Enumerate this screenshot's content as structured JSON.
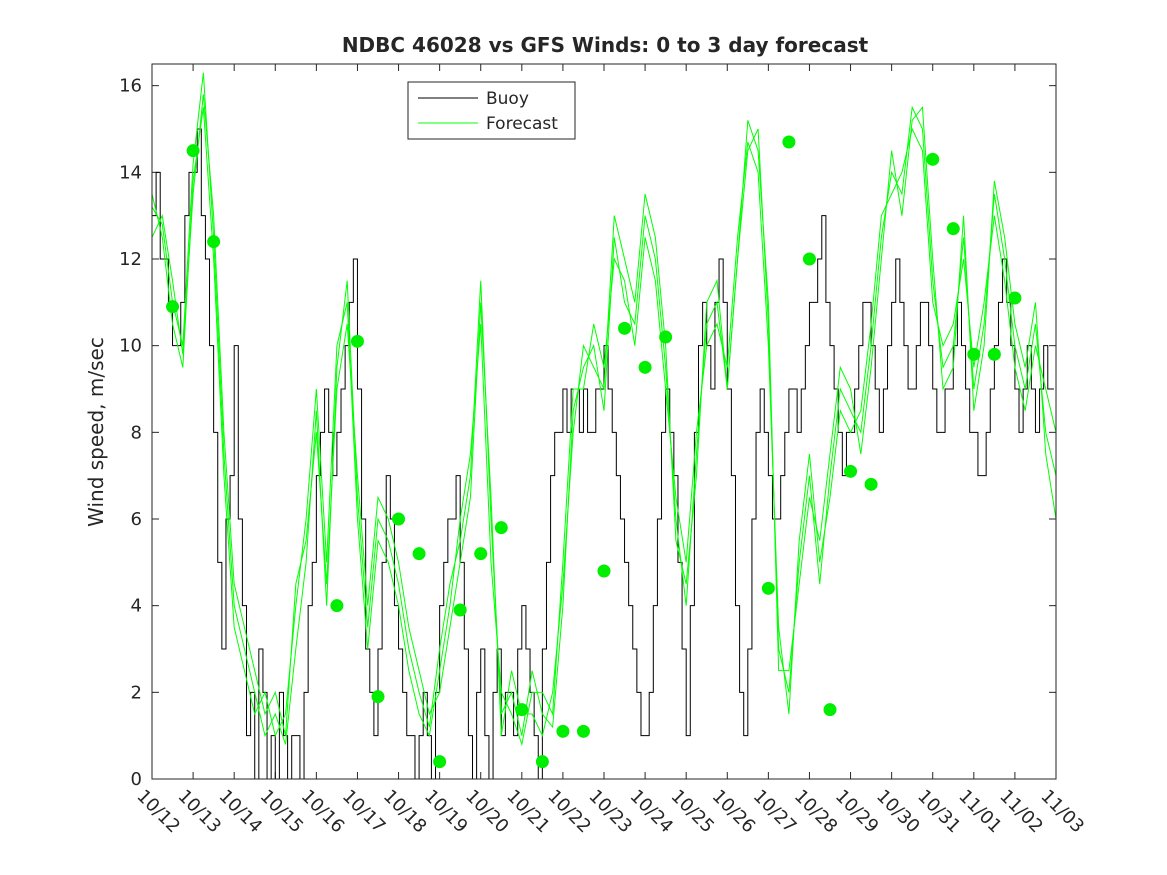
{
  "chart_data": {
    "type": "line",
    "title": "NDBC 46028 vs GFS Winds: 0 to 3 day forecast",
    "xlabel": "",
    "ylabel": "Wind speed, m/sec",
    "xlim": [
      0,
      22
    ],
    "ylim": [
      0,
      16.5
    ],
    "xticks": [
      0,
      1,
      2,
      3,
      4,
      5,
      6,
      7,
      8,
      9,
      10,
      11,
      12,
      13,
      14,
      15,
      16,
      17,
      18,
      19,
      20,
      21,
      22
    ],
    "xtick_labels": [
      "10/12",
      "10/13",
      "10/14",
      "10/15",
      "10/16",
      "10/17",
      "10/18",
      "10/19",
      "10/20",
      "10/21",
      "10/22",
      "10/23",
      "10/24",
      "10/25",
      "10/26",
      "10/27",
      "10/28",
      "10/29",
      "10/30",
      "10/31",
      "11/01",
      "11/02",
      "11/03"
    ],
    "yticks": [
      0,
      2,
      4,
      6,
      8,
      10,
      12,
      14,
      16
    ],
    "ytick_labels": [
      "0",
      "2",
      "4",
      "6",
      "8",
      "10",
      "12",
      "14",
      "16"
    ],
    "legend": {
      "position": "top-center",
      "entries": [
        "Buoy",
        "Forecast"
      ]
    },
    "colors": {
      "buoy": "#000000",
      "forecast": "#00ff00",
      "markers": "#00ee00"
    },
    "series": [
      {
        "name": "Buoy",
        "style": "step",
        "x": [
          0,
          0.1,
          0.2,
          0.3,
          0.4,
          0.5,
          0.6,
          0.7,
          0.8,
          0.9,
          1.0,
          1.1,
          1.2,
          1.3,
          1.4,
          1.5,
          1.6,
          1.7,
          1.8,
          1.9,
          2.0,
          2.1,
          2.2,
          2.3,
          2.4,
          2.5,
          2.6,
          2.7,
          2.8,
          2.9,
          3.0,
          3.1,
          3.2,
          3.3,
          3.4,
          3.5,
          3.6,
          3.7,
          3.8,
          3.9,
          4.0,
          4.1,
          4.2,
          4.3,
          4.4,
          4.5,
          4.6,
          4.7,
          4.8,
          4.9,
          5.0,
          5.1,
          5.2,
          5.3,
          5.4,
          5.5,
          5.6,
          5.7,
          5.8,
          5.9,
          6.0,
          6.1,
          6.2,
          6.3,
          6.4,
          6.5,
          6.6,
          6.7,
          6.8,
          6.9,
          7.0,
          7.1,
          7.2,
          7.3,
          7.4,
          7.5,
          7.6,
          7.7,
          7.8,
          7.9,
          8.0,
          8.1,
          8.2,
          8.3,
          8.4,
          8.5,
          8.6,
          8.7,
          8.8,
          8.9,
          9.0,
          9.1,
          9.2,
          9.3,
          9.4,
          9.5,
          9.6,
          9.7,
          9.8,
          9.9,
          10.0,
          10.1,
          10.2,
          10.3,
          10.4,
          10.5,
          10.6,
          10.7,
          10.8,
          10.9,
          11.0,
          11.1,
          11.2,
          11.3,
          11.4,
          11.5,
          11.6,
          11.7,
          11.8,
          11.9,
          12.0,
          12.1,
          12.2,
          12.3,
          12.4,
          12.5,
          12.6,
          12.7,
          12.8,
          12.9,
          13.0,
          13.1,
          13.2,
          13.3,
          13.4,
          13.5,
          13.6,
          13.7,
          13.8,
          13.9,
          14.0,
          14.1,
          14.2,
          14.3,
          14.4,
          14.5,
          14.6,
          14.7,
          14.8,
          14.9,
          15.0,
          15.1,
          15.2,
          15.3,
          15.4,
          15.5,
          15.6,
          15.7,
          15.8,
          15.9,
          16.0,
          16.1,
          16.2,
          16.3,
          16.4,
          16.5,
          16.6,
          16.7,
          16.8,
          16.9,
          17.0,
          17.1,
          17.2,
          17.3,
          17.4,
          17.5,
          17.6,
          17.7,
          17.8,
          17.9,
          18.0,
          18.1,
          18.2,
          18.3,
          18.4,
          18.5,
          18.6,
          18.7,
          18.8,
          18.9,
          19.0,
          19.1,
          19.2,
          19.3,
          19.4,
          19.5,
          19.6,
          19.7,
          19.8,
          19.9,
          20.0,
          20.1,
          20.2,
          20.3,
          20.4,
          20.5,
          20.6,
          20.7,
          20.8,
          20.9,
          21.0,
          21.1,
          21.2,
          21.3,
          21.4,
          21.5,
          21.6,
          21.7,
          21.8,
          21.9
        ],
        "y": [
          13,
          14,
          12,
          12,
          11,
          10,
          10,
          11,
          13,
          14,
          14,
          15,
          13,
          12,
          10,
          8,
          5,
          3,
          6,
          7,
          10,
          6,
          4,
          1,
          2,
          0,
          3,
          2,
          0,
          1,
          0,
          2,
          1,
          0,
          1,
          1,
          0,
          2,
          4,
          5,
          7,
          8,
          9,
          8,
          7,
          8,
          9,
          10,
          11,
          12,
          9,
          6,
          3,
          2,
          1,
          3,
          5,
          7,
          6,
          4,
          3,
          2,
          1,
          1,
          0,
          1,
          2,
          1,
          0,
          2,
          4,
          5,
          6,
          6,
          7,
          5,
          3,
          1,
          0,
          2,
          3,
          1,
          0,
          2,
          3,
          1,
          2,
          2,
          1,
          3,
          4,
          3,
          2,
          1,
          0,
          3,
          5,
          7,
          8,
          8,
          9,
          8,
          9,
          9,
          8,
          9,
          8,
          8,
          9,
          9,
          10,
          9,
          8,
          7,
          6,
          5,
          4,
          3,
          2,
          1,
          1,
          2,
          4,
          6,
          8,
          9,
          8,
          7,
          5,
          3,
          1,
          4,
          8,
          10,
          11,
          10,
          9,
          11,
          12,
          11,
          9,
          7,
          4,
          2,
          1,
          3,
          6,
          8,
          9,
          8,
          7,
          6,
          6,
          7,
          8,
          9,
          9,
          8,
          9,
          10,
          11,
          11,
          12,
          13,
          11,
          10,
          9,
          8,
          7,
          8,
          8,
          9,
          10,
          11,
          11,
          10,
          9,
          8,
          9,
          10,
          11,
          12,
          11,
          10,
          9,
          9,
          10,
          11,
          11,
          10,
          9,
          8,
          8,
          9,
          9,
          10,
          11,
          10,
          9,
          8,
          8,
          7,
          7,
          8,
          9,
          10,
          11,
          12,
          11,
          10,
          9,
          8,
          9,
          10,
          9,
          8,
          9,
          10,
          9,
          9
        ]
      },
      {
        "name": "Forecast 1",
        "x": [
          0,
          0.25,
          0.5,
          0.75,
          1.0,
          1.25,
          1.5,
          1.75,
          2.0,
          2.25,
          2.5,
          2.75,
          3.0,
          3.25,
          3.5,
          3.75,
          4.0,
          4.25,
          4.5,
          4.75,
          5.0,
          5.25,
          5.5,
          5.75,
          6.0,
          6.25,
          6.5,
          6.75,
          7.0,
          7.25,
          7.5,
          7.75,
          8.0,
          8.25,
          8.5,
          8.75,
          9.0,
          9.25,
          9.5,
          9.75,
          10.0,
          10.25,
          10.5,
          10.75,
          11.0,
          11.25,
          11.5,
          11.75,
          12.0,
          12.25,
          12.5,
          12.75,
          13.0,
          13.25,
          13.5,
          13.75,
          14.0,
          14.25,
          14.5,
          14.75,
          15.0,
          15.25,
          15.5,
          15.75,
          16.0,
          16.25,
          16.5,
          16.75,
          17.0,
          17.25,
          17.5,
          17.75,
          18.0,
          18.25,
          18.5,
          18.75,
          19.0,
          19.25,
          19.5,
          19.75,
          20.0,
          20.25,
          20.5,
          20.75,
          21.0,
          21.25,
          21.5,
          21.75,
          22.0
        ],
        "y": [
          13.2,
          12.8,
          11.0,
          10.0,
          14.2,
          16.3,
          12.5,
          7.5,
          4.0,
          3.0,
          2.0,
          1.0,
          1.5,
          0.8,
          3.0,
          5.0,
          8.5,
          4.0,
          9.5,
          11.5,
          6.5,
          3.5,
          6.0,
          5.5,
          4.5,
          3.0,
          2.0,
          1.2,
          3.0,
          4.5,
          5.5,
          7.0,
          11.5,
          6.0,
          1.5,
          2.0,
          1.0,
          2.5,
          1.5,
          1.2,
          4.0,
          8.5,
          9.5,
          10.0,
          8.5,
          12.5,
          11.0,
          10.5,
          13.0,
          12.0,
          9.5,
          6.0,
          4.0,
          7.5,
          10.5,
          11.0,
          9.0,
          12.0,
          14.5,
          15.0,
          10.5,
          3.0,
          2.0,
          5.0,
          7.0,
          4.5,
          7.0,
          9.0,
          8.5,
          8.0,
          10.0,
          12.5,
          14.0,
          13.5,
          15.5,
          15.0,
          11.5,
          9.5,
          10.0,
          12.5,
          9.0,
          10.5,
          13.5,
          12.0,
          10.0,
          9.0,
          10.5,
          8.0,
          7.0
        ]
      },
      {
        "name": "Forecast 2",
        "x": [
          0,
          0.25,
          0.5,
          0.75,
          1.0,
          1.25,
          1.5,
          1.75,
          2.0,
          2.25,
          2.5,
          2.75,
          3.0,
          3.25,
          3.5,
          3.75,
          4.0,
          4.25,
          4.5,
          4.75,
          5.0,
          5.25,
          5.5,
          5.75,
          6.0,
          6.25,
          6.5,
          6.75,
          7.0,
          7.25,
          7.5,
          7.75,
          8.0,
          8.25,
          8.5,
          8.75,
          9.0,
          9.25,
          9.5,
          9.75,
          10.0,
          10.25,
          10.5,
          10.75,
          11.0,
          11.25,
          11.5,
          11.75,
          12.0,
          12.25,
          12.5,
          12.75,
          13.0,
          13.25,
          13.5,
          13.75,
          14.0,
          14.25,
          14.5,
          14.75,
          15.0,
          15.25,
          15.5,
          15.75,
          16.0,
          16.25,
          16.5,
          16.75,
          17.0,
          17.25,
          17.5,
          17.75,
          18.0,
          18.25,
          18.5,
          18.75,
          19.0,
          19.25,
          19.5,
          19.75,
          20.0,
          20.25,
          20.5,
          20.75,
          21.0,
          21.25,
          21.5,
          21.75,
          22.0
        ],
        "y": [
          13.5,
          12.5,
          10.5,
          9.5,
          13.8,
          15.5,
          12.0,
          7.0,
          3.5,
          2.5,
          1.5,
          2.0,
          1.0,
          1.5,
          4.0,
          6.0,
          9.0,
          5.0,
          10.0,
          11.0,
          6.0,
          3.0,
          5.5,
          5.0,
          4.0,
          2.5,
          1.5,
          1.0,
          2.5,
          4.0,
          6.0,
          7.5,
          10.5,
          5.0,
          2.0,
          1.5,
          0.8,
          2.0,
          2.0,
          1.5,
          5.0,
          9.0,
          9.0,
          10.5,
          9.5,
          12.0,
          11.5,
          10.0,
          12.5,
          11.5,
          9.0,
          6.5,
          5.0,
          8.0,
          10.0,
          10.5,
          9.5,
          12.5,
          14.7,
          14.0,
          10.0,
          3.5,
          1.5,
          5.5,
          7.5,
          5.0,
          6.5,
          8.5,
          8.0,
          8.5,
          10.5,
          13.0,
          13.5,
          14.0,
          15.0,
          14.5,
          11.0,
          10.0,
          10.5,
          12.0,
          9.5,
          11.0,
          13.0,
          11.5,
          9.5,
          8.5,
          10.0,
          9.0,
          8.0
        ]
      },
      {
        "name": "Forecast 3",
        "x": [
          0,
          0.25,
          0.5,
          0.75,
          1.0,
          1.25,
          1.5,
          1.75,
          2.0,
          2.25,
          2.5,
          2.75,
          3.0,
          3.25,
          3.5,
          3.75,
          4.0,
          4.25,
          4.5,
          4.75,
          5.0,
          5.25,
          5.5,
          5.75,
          6.0,
          6.25,
          6.5,
          6.75,
          7.0,
          7.25,
          7.5,
          7.75,
          8.0,
          8.25,
          8.5,
          8.75,
          9.0,
          9.25,
          9.5,
          9.75,
          10.0,
          10.25,
          10.5,
          10.75,
          11.0,
          11.25,
          11.5,
          11.75,
          12.0,
          12.25,
          12.5,
          12.75,
          13.0,
          13.25,
          13.5,
          13.75,
          14.0,
          14.25,
          14.5,
          14.75,
          15.0,
          15.25,
          15.5,
          15.75,
          16.0,
          16.25,
          16.5,
          16.75,
          17.0,
          17.25,
          17.5,
          17.75,
          18.0,
          18.25,
          18.5,
          18.75,
          19.0,
          19.25,
          19.5,
          19.75,
          20.0,
          20.25,
          20.5,
          20.75,
          21.0,
          21.25,
          21.5,
          21.75,
          22.0
        ],
        "y": [
          12.5,
          13.0,
          11.5,
          9.8,
          13.5,
          15.8,
          13.0,
          8.0,
          4.5,
          3.5,
          2.5,
          1.5,
          2.0,
          1.0,
          4.5,
          5.5,
          8.0,
          4.5,
          9.0,
          10.5,
          7.0,
          4.0,
          6.5,
          6.0,
          5.0,
          3.5,
          2.5,
          1.5,
          2.0,
          3.5,
          5.0,
          6.5,
          11.0,
          6.5,
          1.0,
          2.5,
          1.5,
          1.5,
          1.0,
          2.0,
          4.5,
          8.0,
          10.0,
          9.5,
          9.0,
          13.0,
          12.0,
          11.0,
          13.5,
          12.5,
          10.0,
          5.5,
          4.5,
          7.0,
          11.0,
          11.5,
          9.0,
          12.0,
          15.2,
          14.5,
          11.0,
          2.5,
          2.5,
          4.5,
          6.5,
          5.5,
          7.5,
          9.5,
          9.0,
          7.5,
          9.5,
          12.0,
          14.5,
          13.0,
          15.2,
          15.5,
          12.0,
          9.0,
          9.5,
          13.0,
          8.5,
          10.0,
          13.8,
          12.5,
          10.5,
          9.5,
          11.0,
          7.5,
          6.0
        ]
      }
    ],
    "markers": {
      "name": "Forecast points",
      "x": [
        0.5,
        1.0,
        1.5,
        4.5,
        5.0,
        5.5,
        6.0,
        6.5,
        7.0,
        7.5,
        8.0,
        8.5,
        9.0,
        9.5,
        10.0,
        10.5,
        11.0,
        11.5,
        12.0,
        12.5,
        15.0,
        15.5,
        16.0,
        16.5,
        17.0,
        17.5,
        19.0,
        19.5,
        20.0,
        20.5,
        21.0
      ],
      "y": [
        10.9,
        14.5,
        12.4,
        4.0,
        10.1,
        1.9,
        6.0,
        5.2,
        0.4,
        3.9,
        5.2,
        5.8,
        1.6,
        0.4,
        1.1,
        1.1,
        4.8,
        10.4,
        9.5,
        10.2,
        4.4,
        14.7,
        12.0,
        1.6,
        7.1,
        6.8,
        14.3,
        12.7,
        9.8,
        9.8,
        11.1
      ]
    }
  }
}
